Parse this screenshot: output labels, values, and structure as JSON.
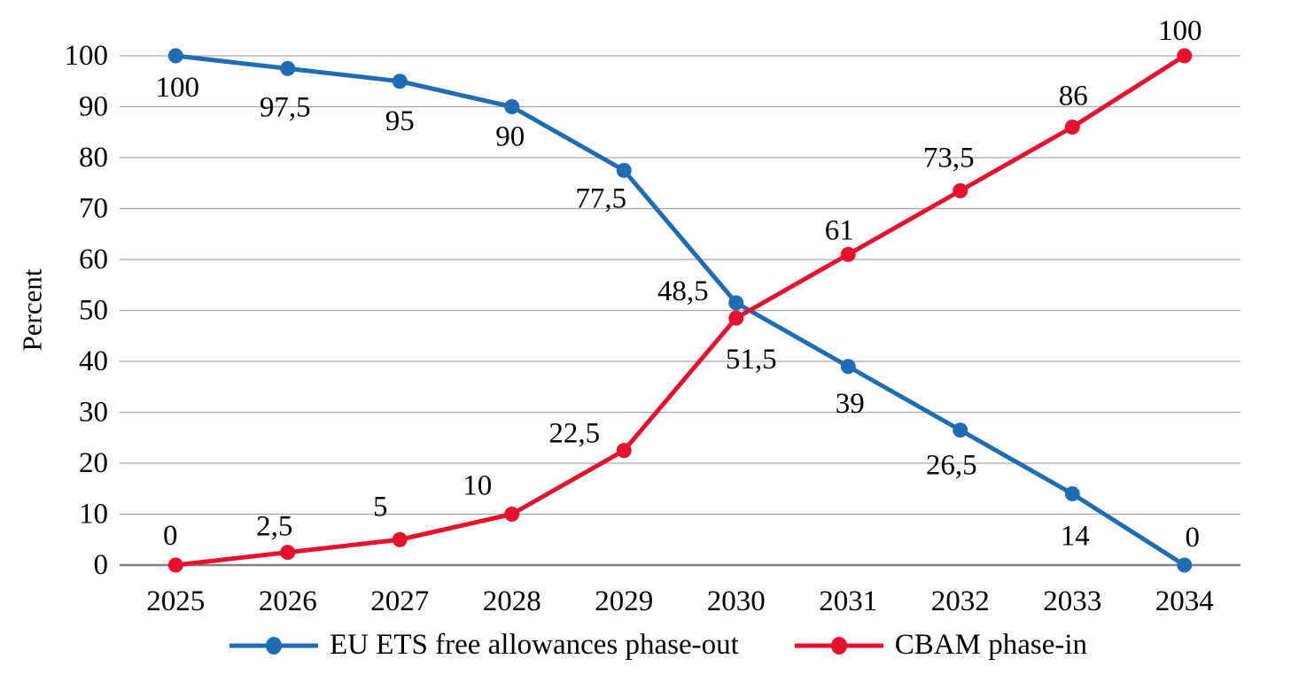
{
  "chart_data": {
    "type": "line",
    "title": "",
    "xlabel": "",
    "ylabel": "Percent",
    "ylim": [
      0,
      100
    ],
    "ytick_step": 10,
    "yticks": [
      "0",
      "10",
      "20",
      "30",
      "40",
      "50",
      "60",
      "70",
      "80",
      "90",
      "100"
    ],
    "x": [
      "2025",
      "2026",
      "2027",
      "2028",
      "2029",
      "2030",
      "2031",
      "2032",
      "2033",
      "2034"
    ],
    "grid": true,
    "legend_position": "bottom",
    "colors": {
      "grid": "#A6A6A6",
      "axis": "#808080",
      "text": "#000000"
    },
    "series": [
      {
        "name": "EU ETS free allowances phase-out",
        "color": "#1F6CB5",
        "values": [
          100,
          97.5,
          95,
          90,
          77.5,
          51.5,
          39,
          26.5,
          14,
          0
        ],
        "labels": [
          "100",
          "97,5",
          "95",
          "90",
          "77,5",
          "51,5",
          "39",
          "26,5",
          "14",
          "0"
        ],
        "label_offsets": [
          [
            2,
            36
          ],
          [
            -3,
            44
          ],
          [
            0,
            45
          ],
          [
            -2,
            34
          ],
          [
            -26,
            32
          ],
          [
            17,
            64
          ],
          [
            2,
            42
          ],
          [
            -10,
            40
          ],
          [
            3,
            48
          ],
          [
            9,
            -31
          ]
        ]
      },
      {
        "name": "CBAM phase-in",
        "color": "#E8112D",
        "values": [
          0,
          2.5,
          5,
          10,
          22.5,
          48.5,
          61,
          73.5,
          86,
          100
        ],
        "labels": [
          "0",
          "2,5",
          "5",
          "10",
          "22,5",
          "48,5",
          "61",
          "73,5",
          "86",
          "100"
        ],
        "label_offsets": [
          [
            -6,
            -33
          ],
          [
            -15,
            -29
          ],
          [
            -22,
            -37
          ],
          [
            -39,
            -32
          ],
          [
            -56,
            -19
          ],
          [
            -60,
            -30
          ],
          [
            -10,
            -27
          ],
          [
            -13,
            -37
          ],
          [
            1,
            -35
          ],
          [
            -5,
            -28
          ]
        ]
      }
    ]
  }
}
